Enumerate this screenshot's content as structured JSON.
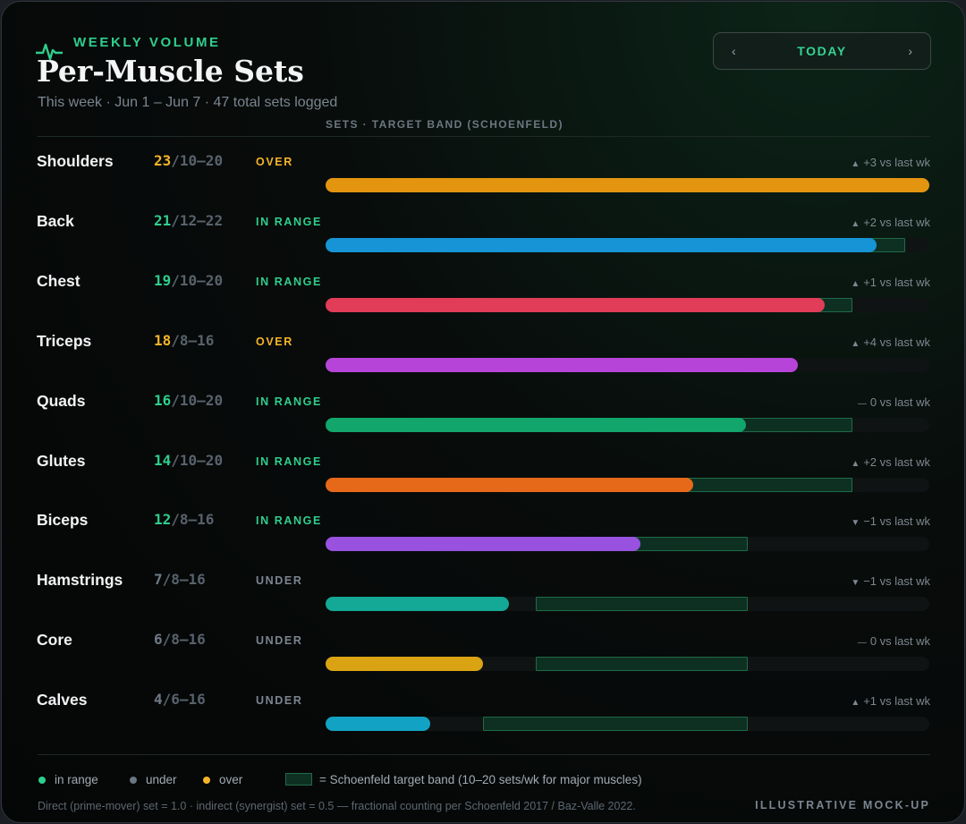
{
  "header": {
    "eyebrow": "WEEKLY VOLUME",
    "title": "Per-Muscle Sets",
    "subtitle": "This week · Jun 1 – Jun 7 · 47 total sets logged",
    "nav": {
      "prev_icon": "chevron-left-icon",
      "next_icon": "chevron-right-icon",
      "label": "TODAY",
      "prev_glyph": "‹",
      "next_glyph": "›"
    }
  },
  "axis_title": "SETS · TARGET BAND (SCHOENFELD)",
  "scale_max": 23,
  "muscles": [
    {
      "name": "Shoulders",
      "sets": 23,
      "target": "10–20",
      "target_low": 10,
      "target_high": 20,
      "status": "OVER",
      "status_key": "over",
      "delta": "+3 vs last wk",
      "trend": "up",
      "color": "#e39510"
    },
    {
      "name": "Back",
      "sets": 21,
      "target": "12–22",
      "target_low": 12,
      "target_high": 22,
      "status": "IN RANGE",
      "status_key": "in",
      "delta": "+2 vs last wk",
      "trend": "up",
      "color": "#1694d6"
    },
    {
      "name": "Chest",
      "sets": 19,
      "target": "10–20",
      "target_low": 10,
      "target_high": 20,
      "status": "IN RANGE",
      "status_key": "in",
      "delta": "+1 vs last wk",
      "trend": "up",
      "color": "#e13c58"
    },
    {
      "name": "Triceps",
      "sets": 18,
      "target": "8–16",
      "target_low": 8,
      "target_high": 16,
      "status": "OVER",
      "status_key": "over",
      "delta": "+4 vs last wk",
      "trend": "up",
      "color": "#b744d8"
    },
    {
      "name": "Quads",
      "sets": 16,
      "target": "10–20",
      "target_low": 10,
      "target_high": 20,
      "status": "IN RANGE",
      "status_key": "in",
      "delta": "0 vs last wk",
      "trend": "flat",
      "color": "#12a56c"
    },
    {
      "name": "Glutes",
      "sets": 14,
      "target": "10–20",
      "target_low": 10,
      "target_high": 20,
      "status": "IN RANGE",
      "status_key": "in",
      "delta": "+2 vs last wk",
      "trend": "up",
      "color": "#e6691a"
    },
    {
      "name": "Biceps",
      "sets": 12,
      "target": "8–16",
      "target_low": 8,
      "target_high": 16,
      "status": "IN RANGE",
      "status_key": "in",
      "delta": "−1 vs last wk",
      "trend": "down",
      "color": "#9852df"
    },
    {
      "name": "Hamstrings",
      "sets": 7,
      "target": "8–16",
      "target_low": 8,
      "target_high": 16,
      "status": "UNDER",
      "status_key": "under",
      "delta": "−1 vs last wk",
      "trend": "down",
      "color": "#14a896"
    },
    {
      "name": "Core",
      "sets": 6,
      "target": "8–16",
      "target_low": 8,
      "target_high": 16,
      "status": "UNDER",
      "status_key": "under",
      "delta": "0 vs last wk",
      "trend": "flat",
      "color": "#d9a313"
    },
    {
      "name": "Calves",
      "sets": 4,
      "target": "6–16",
      "target_low": 6,
      "target_high": 16,
      "status": "UNDER",
      "status_key": "under",
      "delta": "+1 vs last wk",
      "trend": "up",
      "color": "#12a2c4"
    }
  ],
  "trend_glyphs": {
    "up": "▲",
    "down": "▼",
    "flat": "—"
  },
  "legend": {
    "in_range": "in range",
    "under": "under",
    "over": "over",
    "band": "= Schoenfeld target band (10–20 sets/wk for major muscles)",
    "colors": {
      "in_range": "#2fce8e",
      "under": "#6b7682",
      "over": "#f5b429"
    }
  },
  "footnote": "Direct (prime-mover) set = 1.0 · indirect (synergist) set = 0.5 — fractional counting per Schoenfeld 2017 / Baz-Valle 2022.",
  "badge": "ILLUSTRATIVE MOCK-UP"
}
